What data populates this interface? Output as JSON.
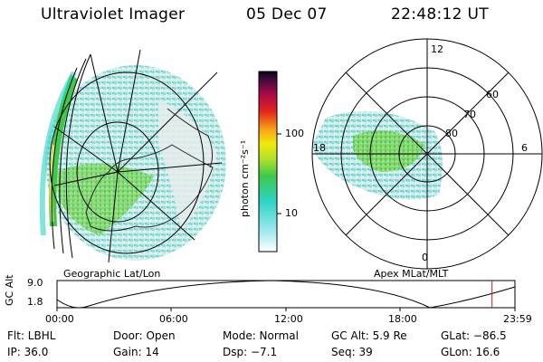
{
  "header": {
    "instrument": "Ultraviolet Imager",
    "date": "05 Dec 07",
    "time": "22:48:12 UT"
  },
  "colorbar": {
    "unit": "photon cm⁻²s⁻¹",
    "ticks": [
      "100",
      "10"
    ],
    "scale": "log"
  },
  "panels": {
    "left_label": "Geographic Lat/Lon",
    "right_label": "Apex MLat/MLT",
    "mlt_labels": [
      "12",
      "18",
      "6",
      "0"
    ],
    "mlat_labels": [
      "60",
      "70",
      "80"
    ]
  },
  "altitude_plot": {
    "ylabel": "GC Alt",
    "yticks": [
      "9.0",
      "1.8"
    ],
    "xticks": [
      "00:00",
      "06:00",
      "12:00",
      "18:00",
      "23:59"
    ],
    "current_marker_hours": 22.8,
    "marker_color": "#e01010"
  },
  "info": {
    "flt": "Flt: LBHL",
    "door": "Door: Open",
    "mode": "Mode: Normal",
    "gc_alt": "GC Alt: 5.9 Re",
    "glat": "GLat: −86.5",
    "ip": "IP: 36.0",
    "gain": "Gain: 14",
    "dsp": "Dsp:    −7.1",
    "seq": "Seq: 39",
    "glon": "GLon:  16.6"
  }
}
